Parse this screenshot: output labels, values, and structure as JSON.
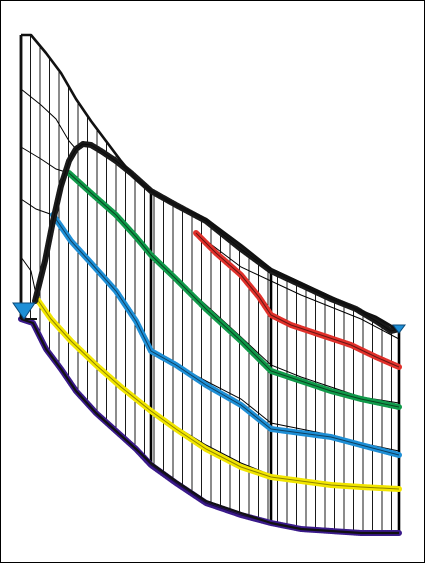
{
  "colors": {
    "frame": "#000000",
    "grid": "#000000",
    "background": "#ffffff",
    "markers": "#1e8fd6"
  },
  "diagram": {
    "type": "cross-section with profile curves",
    "text": "",
    "curves": [
      {
        "color_name": "black",
        "color": "#1a1a1a"
      },
      {
        "color_name": "red",
        "color": "#e0302a"
      },
      {
        "color_name": "green",
        "color": "#109a4a"
      },
      {
        "color_name": "blue",
        "color": "#1e8fd6"
      },
      {
        "color_name": "yellow",
        "color": "#f2e600"
      },
      {
        "color_name": "purple",
        "color": "#3a1a8a"
      }
    ]
  }
}
